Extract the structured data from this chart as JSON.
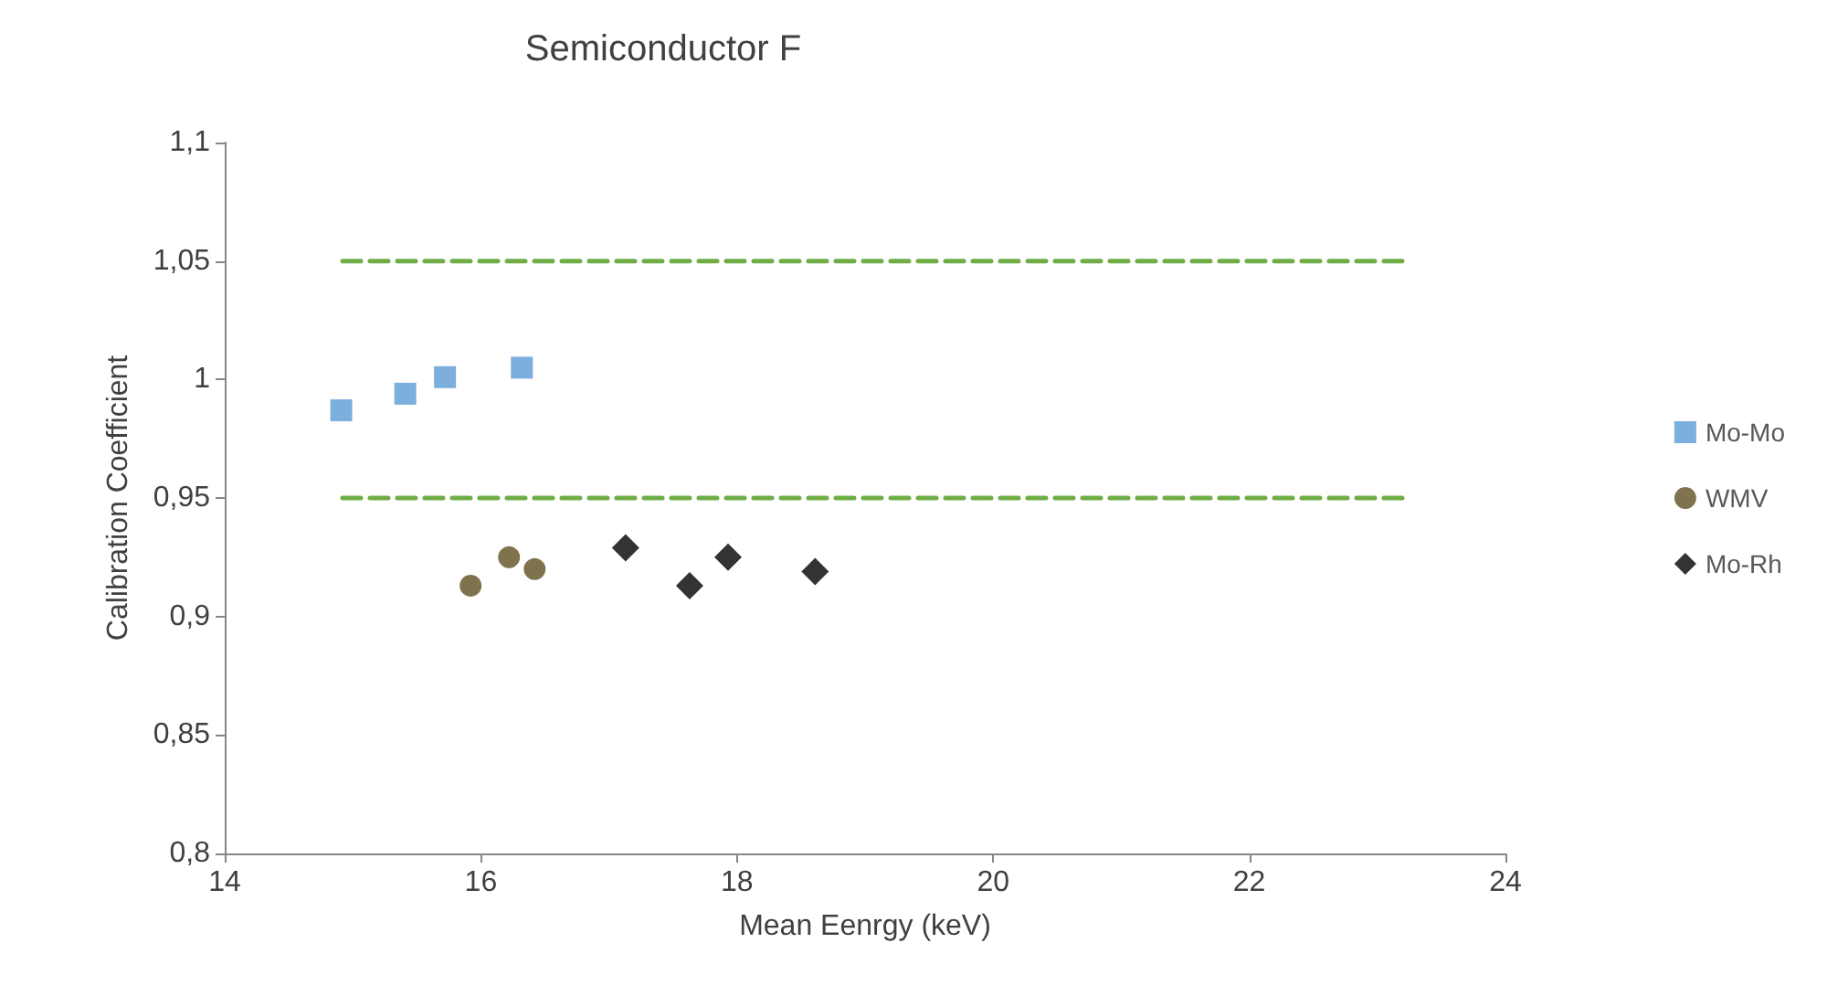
{
  "chart_data": {
    "type": "scatter",
    "title": "Semiconductor F",
    "xlabel": "Mean Eenrgy (keV)",
    "ylabel": "Calibration Coefficient",
    "xlim": [
      14,
      24
    ],
    "xticks": [
      14,
      16,
      18,
      20,
      22,
      24
    ],
    "ylim": [
      0.8,
      1.1
    ],
    "yticks": [
      {
        "value": 0.8,
        "label": "0,8"
      },
      {
        "value": 0.85,
        "label": "0,85"
      },
      {
        "value": 0.9,
        "label": "0,9"
      },
      {
        "value": 0.95,
        "label": "0,95"
      },
      {
        "value": 1,
        "label": "1"
      },
      {
        "value": 1.05,
        "label": "1,05"
      },
      {
        "value": 1.1,
        "label": "1,1"
      }
    ],
    "grid": false,
    "legend": "right",
    "series": [
      {
        "name": "Mo-Mo",
        "color": "#5b9bd5",
        "marker": "square",
        "x": [
          14.91,
          15.41,
          15.72,
          16.32
        ],
        "values": [
          0.987,
          0.994,
          1.001,
          1.005
        ]
      },
      {
        "name": "WMV",
        "color": "#5f5020",
        "marker": "circle",
        "x": [
          15.92,
          16.22,
          16.42
        ],
        "values": [
          0.913,
          0.925,
          0.92
        ]
      },
      {
        "name": "Mo-Rh",
        "color": "#000000",
        "marker": "diamond",
        "x": [
          17.13,
          17.63,
          17.93,
          18.61
        ],
        "values": [
          0.929,
          0.913,
          0.925,
          0.919
        ]
      },
      {
        "type": "line",
        "color": "#70ad47",
        "marker": "none",
        "line_style": "dashed",
        "x": [
          14.92,
          23.2
        ],
        "values": [
          1.05,
          1.05
        ]
      },
      {
        "type": "line",
        "color": "#70ad47",
        "marker": "none",
        "line_style": "dashed",
        "x": [
          14.92,
          23.2
        ],
        "values": [
          0.95,
          0.95
        ]
      }
    ]
  }
}
